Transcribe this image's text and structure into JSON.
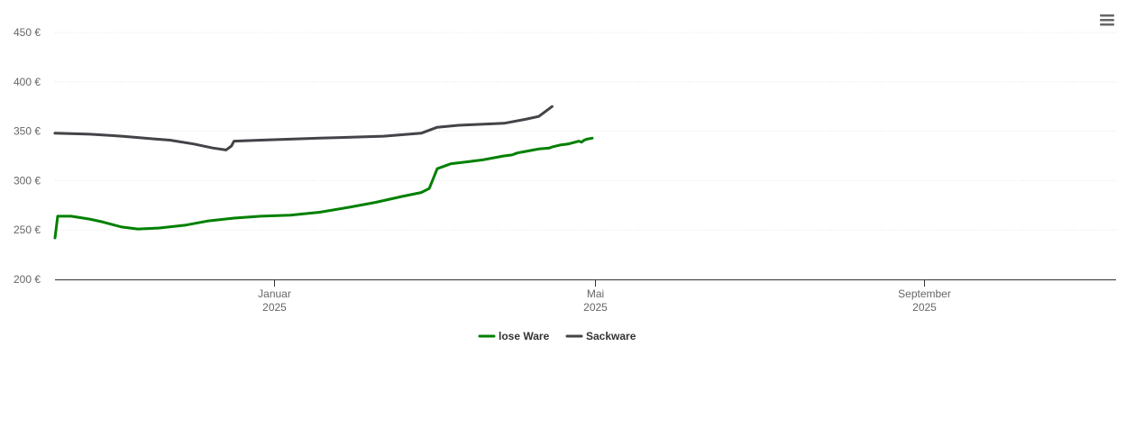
{
  "chart_data": {
    "type": "line",
    "title": "",
    "xlabel": "",
    "ylabel": "",
    "ylim": [
      200,
      450
    ],
    "y_ticks": [
      200,
      250,
      300,
      350,
      400,
      450
    ],
    "y_tick_labels": [
      "200 €",
      "250 €",
      "300 €",
      "350 €",
      "400 €",
      "450 €"
    ],
    "x_range": [
      "2024-10-11",
      "2025-11-12"
    ],
    "x_ticks": [
      {
        "date": "2025-01-01",
        "month": "Januar",
        "year": "2025"
      },
      {
        "date": "2025-05-01",
        "month": "Mai",
        "year": "2025"
      },
      {
        "date": "2025-09-01",
        "month": "September",
        "year": "2025"
      }
    ],
    "grid": true,
    "legend_position": "bottom-center",
    "series": [
      {
        "name": "lose Ware",
        "color": "#008000",
        "points": [
          [
            "2024-10-11",
            242
          ],
          [
            "2024-10-12",
            264
          ],
          [
            "2024-10-17",
            264
          ],
          [
            "2024-10-24",
            261
          ],
          [
            "2024-10-29",
            258
          ],
          [
            "2024-11-05",
            253
          ],
          [
            "2024-11-11",
            251
          ],
          [
            "2024-11-19",
            252
          ],
          [
            "2024-11-29",
            255
          ],
          [
            "2024-12-07",
            259
          ],
          [
            "2024-12-17",
            262
          ],
          [
            "2024-12-27",
            264
          ],
          [
            "2025-01-07",
            265
          ],
          [
            "2025-01-18",
            268
          ],
          [
            "2025-01-29",
            273
          ],
          [
            "2025-02-08",
            278
          ],
          [
            "2025-02-18",
            284
          ],
          [
            "2025-02-25",
            288
          ],
          [
            "2025-02-28",
            292
          ],
          [
            "2025-03-03",
            312
          ],
          [
            "2025-03-08",
            317
          ],
          [
            "2025-03-14",
            319
          ],
          [
            "2025-03-20",
            321
          ],
          [
            "2025-04-01",
            327
          ],
          [
            "2025-04-14",
            333
          ],
          [
            "2025-04-26",
            339
          ],
          [
            "2025-03-31",
            326
          ],
          [
            "2025-04-10",
            332
          ],
          [
            "2025-04-21",
            337
          ],
          [
            "2025-04-27",
            341
          ],
          [
            "2025-04-02",
            328
          ],
          [
            "2025-04-08",
            331
          ],
          [
            "2025-04-25",
            340
          ],
          [
            "2025-04-28",
            342
          ],
          [
            "2025-03-28",
            325
          ],
          [
            "2025-04-04",
            329
          ],
          [
            "2025-04-06",
            330
          ],
          [
            "2025-04-15",
            334
          ],
          [
            "2025-04-18",
            336
          ],
          [
            "2025-04-30",
            343
          ]
        ]
      },
      {
        "name": "Sackware",
        "color": "#434348",
        "points": [
          [
            "2024-10-11",
            348
          ],
          [
            "2024-10-24",
            347
          ],
          [
            "2024-11-05",
            345
          ],
          [
            "2024-11-18",
            342
          ],
          [
            "2024-11-23",
            341
          ],
          [
            "2024-12-02",
            337
          ],
          [
            "2024-12-09",
            333
          ],
          [
            "2024-12-14",
            331
          ],
          [
            "2024-12-16",
            335
          ],
          [
            "2024-12-17",
            340
          ],
          [
            "2024-12-27",
            341
          ],
          [
            "2025-01-18",
            343
          ],
          [
            "2025-02-11",
            345
          ],
          [
            "2025-02-25",
            348
          ],
          [
            "2025-03-03",
            354
          ],
          [
            "2025-03-11",
            356
          ],
          [
            "2025-03-28",
            358
          ],
          [
            "2025-04-05",
            362
          ],
          [
            "2025-04-10",
            365
          ],
          [
            "2025-04-15",
            375
          ]
        ]
      }
    ]
  },
  "legend": {
    "items": [
      {
        "label": "lose Ware",
        "color": "#008000"
      },
      {
        "label": "Sackware",
        "color": "#434348"
      }
    ]
  },
  "menu_icon": "hamburger-menu-icon"
}
